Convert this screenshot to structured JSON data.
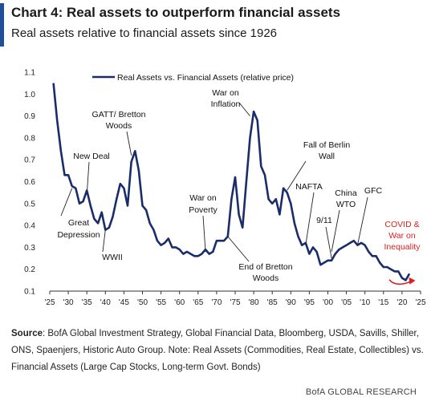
{
  "header": {
    "title": "Chart 4: Real assets to outperform financial assets",
    "subtitle": "Real assets relative to financial assets since 1926"
  },
  "footer": {
    "source_label": "Source",
    "source_text": ": BofA Global Investment Strategy, Global Financial Data, Bloomberg, USDA, Savills, Shiller, ONS, Spaenjers, Historic Auto Group. Note: Real Assets (Commodities, Real Estate, Collectibles) vs. Financial Assets (Large Cap Stocks, Long-term Govt. Bonds)",
    "credit": "BofA GLOBAL RESEARCH"
  },
  "colors": {
    "line": "#1a2d6b",
    "accent": "#1f4e9c",
    "annotation_red": "#e01e1e"
  },
  "chart_data": {
    "type": "line",
    "xlim": [
      1925,
      2025
    ],
    "ylim": [
      0.1,
      1.1
    ],
    "x_ticks": [
      1925,
      1930,
      1935,
      1940,
      1945,
      1950,
      1955,
      1960,
      1965,
      1970,
      1975,
      1980,
      1985,
      1990,
      1995,
      2000,
      2005,
      2010,
      2015,
      2020,
      2025
    ],
    "x_tick_labels": [
      "'25",
      "'30",
      "'35",
      "'40",
      "'45",
      "'50",
      "'55",
      "'60",
      "'65",
      "'70",
      "'75",
      "'80",
      "'85",
      "'90",
      "'95",
      "'00",
      "'05",
      "'10",
      "'15",
      "'20",
      "'25"
    ],
    "y_ticks": [
      0.1,
      0.2,
      0.3,
      0.4,
      0.5,
      0.6,
      0.7,
      0.8,
      0.9,
      1.0,
      1.1
    ],
    "y_tick_labels": [
      "0.1",
      "0.2",
      "0.3",
      "0.4",
      "0.5",
      "0.6",
      "0.7",
      "0.8",
      "0.9",
      "1.0",
      "1.1"
    ],
    "grid": false,
    "legend_position": "top",
    "series": [
      {
        "name": "Real Assets vs. Financial Assets (relative price)",
        "x": [
          1926,
          1927,
          1928,
          1929,
          1930,
          1931,
          1932,
          1933,
          1934,
          1935,
          1936,
          1937,
          1938,
          1939,
          1940,
          1941,
          1942,
          1943,
          1944,
          1945,
          1946,
          1947,
          1948,
          1949,
          1950,
          1951,
          1952,
          1953,
          1954,
          1955,
          1956,
          1957,
          1958,
          1959,
          1960,
          1961,
          1962,
          1963,
          1964,
          1965,
          1966,
          1967,
          1968,
          1969,
          1970,
          1971,
          1972,
          1973,
          1974,
          1975,
          1976,
          1977,
          1978,
          1979,
          1980,
          1981,
          1982,
          1983,
          1984,
          1985,
          1986,
          1987,
          1988,
          1989,
          1990,
          1991,
          1992,
          1993,
          1994,
          1995,
          1996,
          1997,
          1998,
          1999,
          2000,
          2001,
          2002,
          2003,
          2004,
          2005,
          2006,
          2007,
          2008,
          2009,
          2010,
          2011,
          2012,
          2013,
          2014,
          2015,
          2016,
          2017,
          2018,
          2019,
          2020,
          2021,
          2022
        ],
        "y": [
          1.05,
          0.88,
          0.74,
          0.63,
          0.63,
          0.58,
          0.57,
          0.5,
          0.51,
          0.56,
          0.49,
          0.43,
          0.41,
          0.46,
          0.38,
          0.39,
          0.44,
          0.52,
          0.59,
          0.57,
          0.49,
          0.69,
          0.74,
          0.65,
          0.49,
          0.47,
          0.41,
          0.38,
          0.33,
          0.31,
          0.32,
          0.34,
          0.3,
          0.3,
          0.29,
          0.27,
          0.28,
          0.27,
          0.26,
          0.26,
          0.27,
          0.29,
          0.27,
          0.28,
          0.33,
          0.33,
          0.33,
          0.35,
          0.52,
          0.62,
          0.45,
          0.39,
          0.6,
          0.8,
          0.92,
          0.88,
          0.67,
          0.63,
          0.52,
          0.5,
          0.52,
          0.45,
          0.57,
          0.55,
          0.5,
          0.41,
          0.35,
          0.31,
          0.32,
          0.27,
          0.3,
          0.28,
          0.22,
          0.23,
          0.24,
          0.24,
          0.27,
          0.29,
          0.3,
          0.31,
          0.32,
          0.33,
          0.31,
          0.32,
          0.31,
          0.28,
          0.26,
          0.26,
          0.23,
          0.21,
          0.21,
          0.2,
          0.19,
          0.19,
          0.16,
          0.15,
          0.18
        ]
      }
    ],
    "annotations": [
      {
        "text": "Great",
        "year": 1932
      },
      {
        "text": "Depression",
        "year": 1932
      },
      {
        "text": "New Deal",
        "year": 1934
      },
      {
        "text": "WWII",
        "year": 1943
      },
      {
        "text": "GATT/ Bretton",
        "year": 1948
      },
      {
        "text": "Woods",
        "year": 1948
      },
      {
        "text": "War on",
        "year": 1967
      },
      {
        "text": "Poverty",
        "year": 1967
      },
      {
        "text": "War on",
        "year": 1980
      },
      {
        "text": "Inflation",
        "year": 1980
      },
      {
        "text": "End of Bretton",
        "year": 1979
      },
      {
        "text": "Woods",
        "year": 1979
      },
      {
        "text": "Fall of Berlin",
        "year": 1990
      },
      {
        "text": "Wall",
        "year": 1990
      },
      {
        "text": "NAFTA",
        "year": 1994
      },
      {
        "text": "9/11",
        "year": 2001
      },
      {
        "text": "China",
        "year": 2006
      },
      {
        "text": "WTO",
        "year": 2006
      },
      {
        "text": "GFC",
        "year": 2008
      },
      {
        "text": "COVID &",
        "year": 2022
      },
      {
        "text": "War on",
        "year": 2022
      },
      {
        "text": "Inequality",
        "year": 2022
      }
    ]
  }
}
